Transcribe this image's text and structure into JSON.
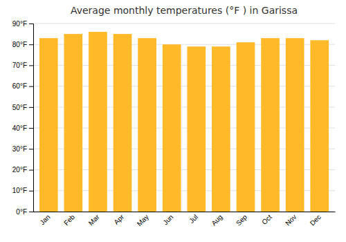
{
  "chart_data": {
    "type": "bar",
    "title": "Average monthly temperatures (°F ) in Garissa",
    "categories": [
      "Jan",
      "Feb",
      "Mar",
      "Apr",
      "May",
      "Jun",
      "Jul",
      "Aug",
      "Sep",
      "Oct",
      "Nov",
      "Dec"
    ],
    "values": [
      83,
      85,
      86,
      85,
      83,
      80,
      79,
      79,
      81,
      83,
      83,
      82
    ],
    "color": "#FFB929",
    "ylim": [
      0,
      90
    ],
    "yticks": [
      {
        "value": 0,
        "label": "0°F"
      },
      {
        "value": 10,
        "label": "10°F"
      },
      {
        "value": 20,
        "label": "20°F"
      },
      {
        "value": 30,
        "label": "30°F"
      },
      {
        "value": 40,
        "label": "40°F"
      },
      {
        "value": 50,
        "label": "50°F"
      },
      {
        "value": 60,
        "label": "60°F"
      },
      {
        "value": 70,
        "label": "70°F"
      },
      {
        "value": 80,
        "label": "80°F"
      },
      {
        "value": 90,
        "label": "90°F"
      }
    ],
    "grid": true
  }
}
